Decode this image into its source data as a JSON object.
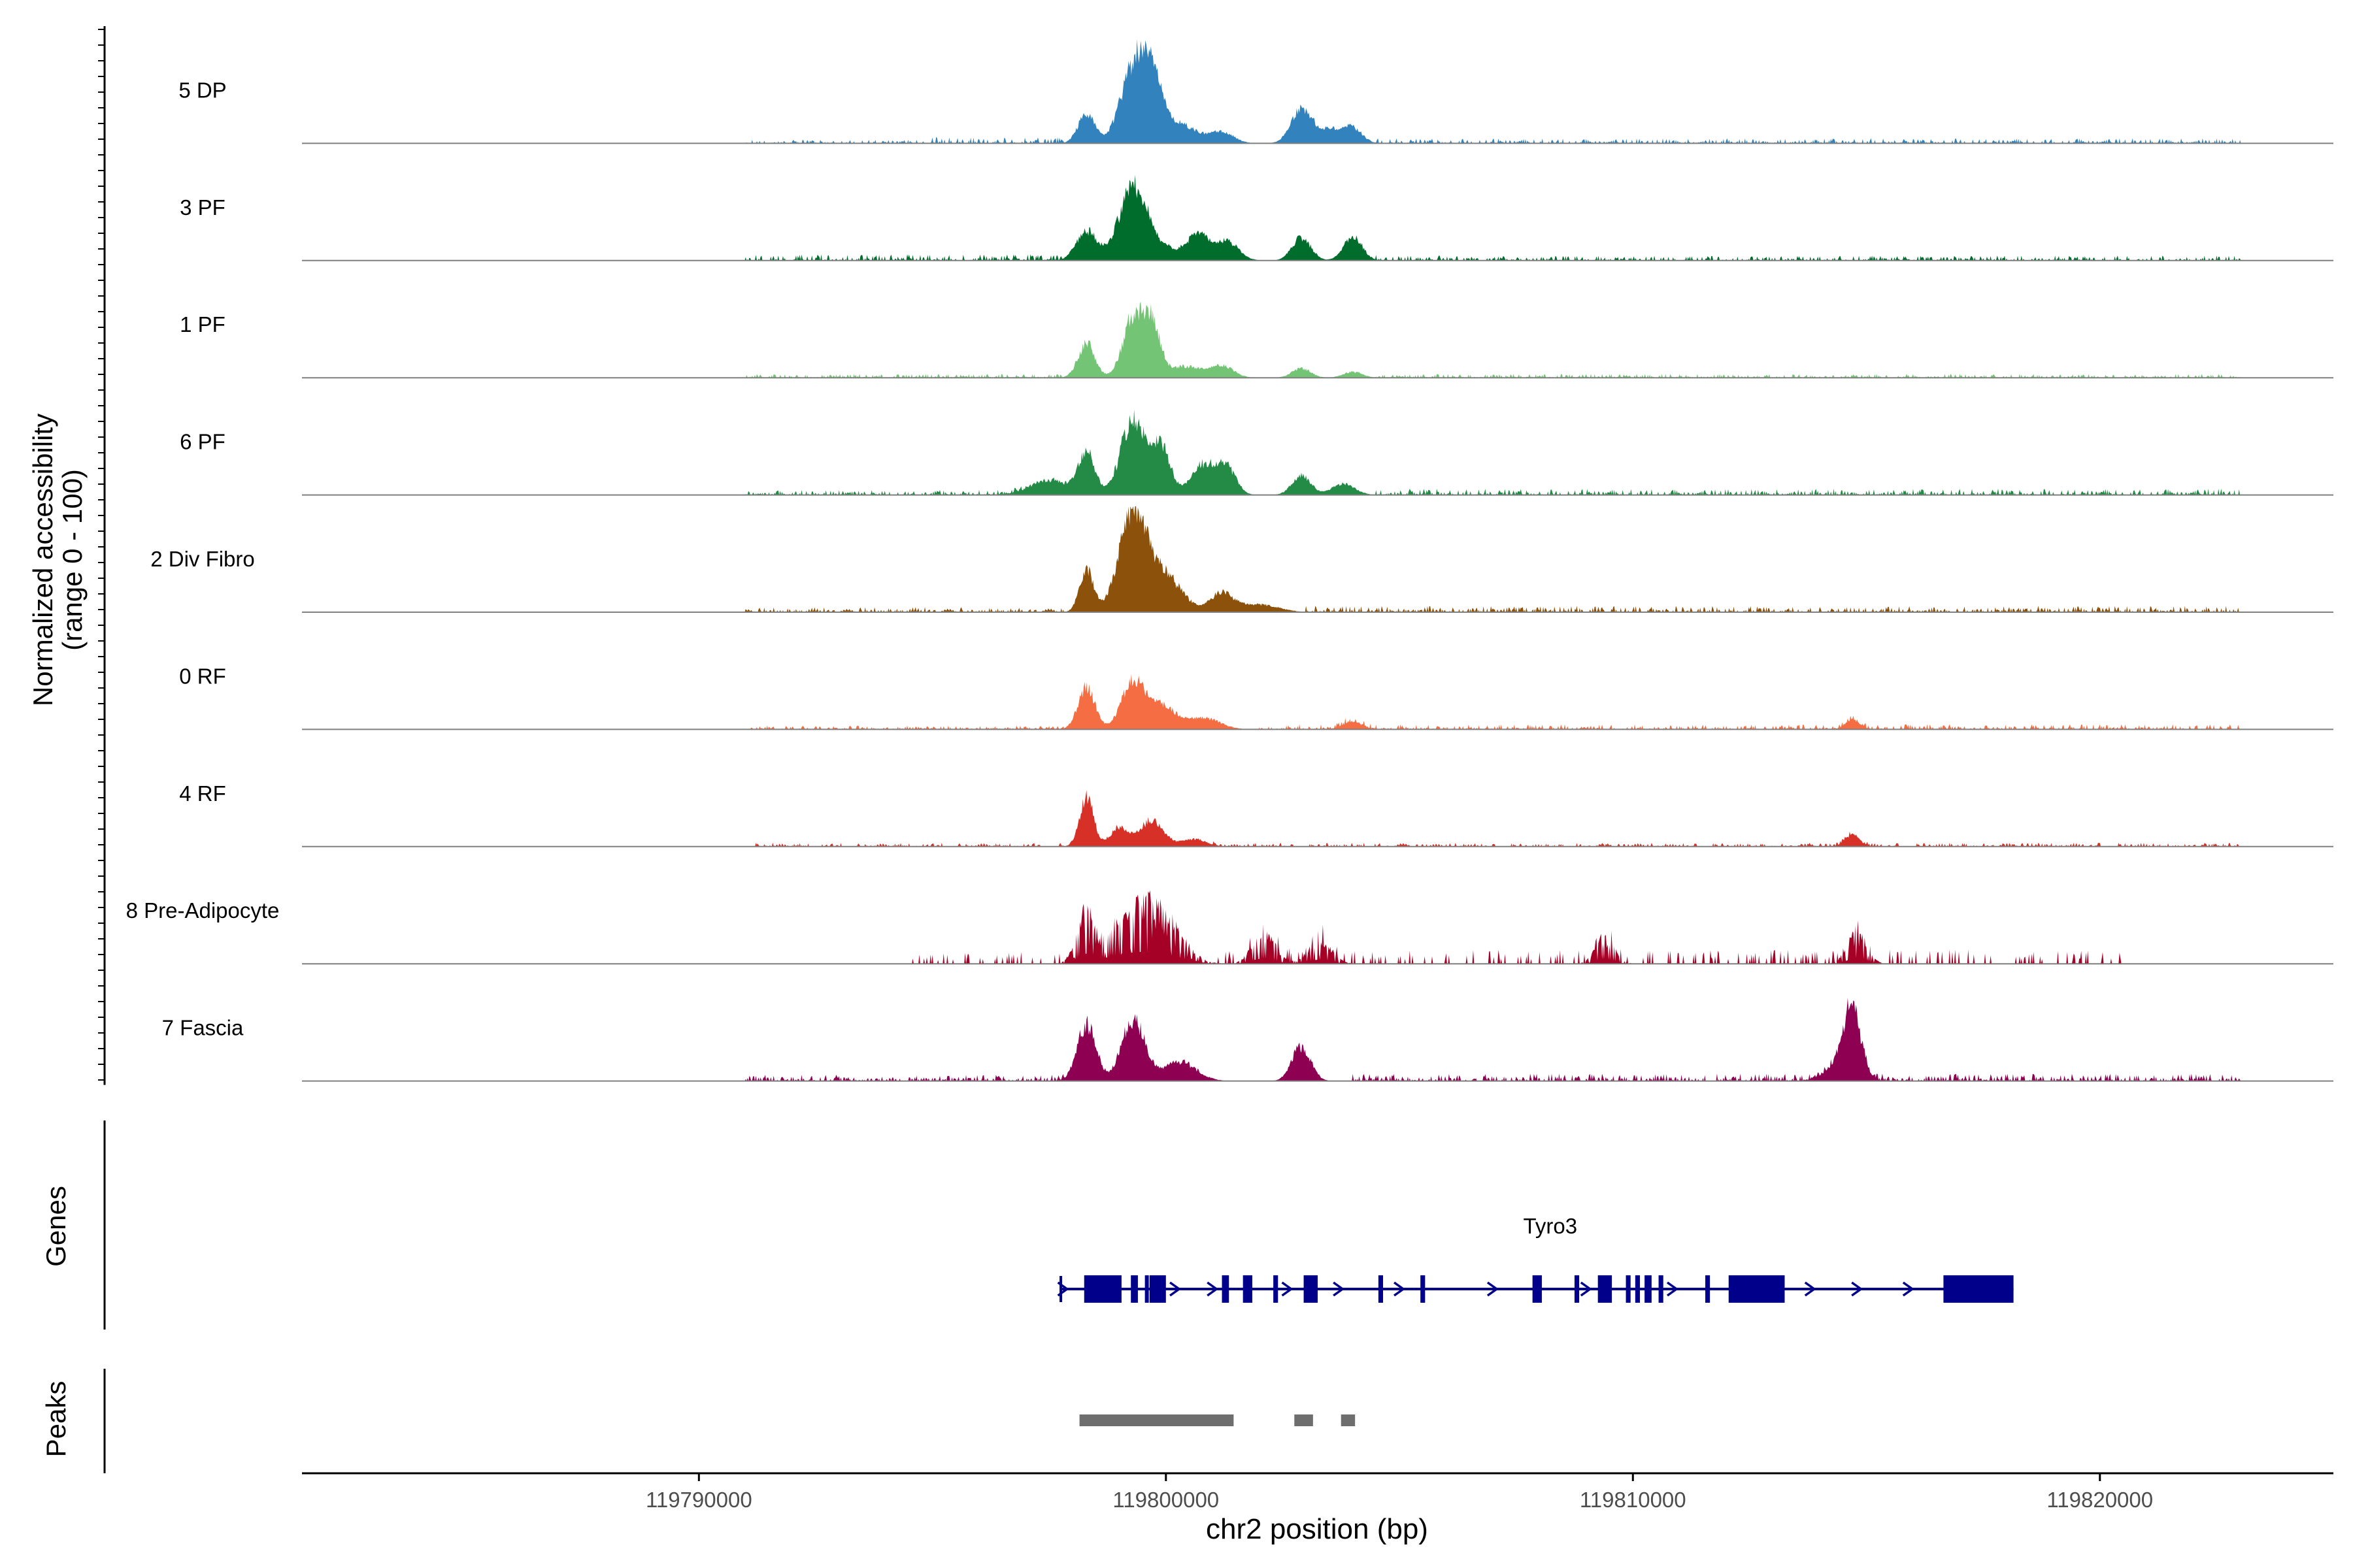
{
  "chart_data": {
    "type": "area",
    "title": "",
    "ylabel_line1": "Normalized accessibility",
    "ylabel_line2": "(range 0 - 100)",
    "xlabel": "chr2 position (bp)",
    "xlim": [
      119781500,
      119825000
    ],
    "ylim": [
      0,
      100
    ],
    "x_ticks": [
      119790000,
      119800000,
      119810000,
      119820000
    ],
    "x_tick_labels": [
      "119790000",
      "119800000",
      "119810000",
      "119820000"
    ],
    "tracks": [
      {
        "name": "5 DP",
        "color": "#3182bd",
        "peaks": [
          [
            119798300,
            38,
            180
          ],
          [
            119799300,
            95,
            280
          ],
          [
            119799700,
            75,
            220
          ],
          [
            119800300,
            25,
            350
          ],
          [
            119801200,
            15,
            250
          ],
          [
            119802900,
            45,
            220
          ],
          [
            119803500,
            18,
            250
          ],
          [
            119804000,
            20,
            200
          ]
        ],
        "bg": [
          [
            119791000,
            119795000,
            3
          ],
          [
            119795000,
            119797800,
            5
          ],
          [
            119804500,
            119823000,
            4
          ]
        ]
      },
      {
        "name": "3 PF",
        "color": "#006d2c",
        "peaks": [
          [
            119798300,
            38,
            220
          ],
          [
            119799300,
            90,
            300
          ],
          [
            119800700,
            28,
            200
          ],
          [
            119801300,
            25,
            250
          ],
          [
            119802900,
            30,
            200
          ],
          [
            119804000,
            32,
            200
          ],
          [
            119800000,
            15,
            600
          ]
        ],
        "bg": [
          [
            119791000,
            119797800,
            5
          ],
          [
            119804500,
            119823000,
            4
          ]
        ]
      },
      {
        "name": "1 PF",
        "color": "#74c476",
        "peaks": [
          [
            119798300,
            45,
            180
          ],
          [
            119799300,
            78,
            220
          ],
          [
            119799700,
            65,
            180
          ],
          [
            119800400,
            15,
            350
          ],
          [
            119801200,
            15,
            250
          ],
          [
            119802900,
            12,
            200
          ],
          [
            119804000,
            8,
            200
          ]
        ],
        "bg": [
          [
            119791000,
            119797800,
            3
          ],
          [
            119804500,
            119823000,
            3
          ]
        ]
      },
      {
        "name": "6 PF",
        "color": "#238b45",
        "peaks": [
          [
            119798300,
            55,
            180
          ],
          [
            119799300,
            100,
            260
          ],
          [
            119799900,
            60,
            200
          ],
          [
            119800800,
            40,
            250
          ],
          [
            119801300,
            35,
            200
          ],
          [
            119802900,
            25,
            200
          ],
          [
            119797500,
            20,
            400
          ],
          [
            119803800,
            15,
            250
          ]
        ],
        "bg": [
          [
            119791000,
            119797000,
            4
          ],
          [
            119804500,
            119823000,
            5
          ]
        ]
      },
      {
        "name": "2 Div Fibro",
        "color": "#8c510a",
        "peaks": [
          [
            119798300,
            55,
            150
          ],
          [
            119799300,
            130,
            300
          ],
          [
            119800000,
            45,
            350
          ],
          [
            119801200,
            25,
            250
          ],
          [
            119802000,
            10,
            400
          ]
        ],
        "bg": [
          [
            119791000,
            119797800,
            4
          ],
          [
            119803000,
            119823000,
            5
          ]
        ]
      },
      {
        "name": "0 RF",
        "color": "#f46d43",
        "peaks": [
          [
            119798300,
            55,
            180
          ],
          [
            119799300,
            60,
            250
          ],
          [
            119799900,
            30,
            300
          ],
          [
            119800800,
            15,
            350
          ],
          [
            119804000,
            10,
            200
          ],
          [
            119814700,
            12,
            150
          ]
        ],
        "bg": [
          [
            119791000,
            119797800,
            3
          ],
          [
            119802000,
            119823000,
            4
          ]
        ]
      },
      {
        "name": "4 RF",
        "color": "#d73027",
        "peaks": [
          [
            119798300,
            65,
            150
          ],
          [
            119799000,
            25,
            200
          ],
          [
            119799700,
            35,
            250
          ],
          [
            119800600,
            10,
            250
          ],
          [
            119814700,
            15,
            150
          ]
        ],
        "bg": [
          [
            119791000,
            119797800,
            3
          ],
          [
            119801000,
            119823000,
            3
          ]
        ]
      },
      {
        "name": "8 Pre-Adipocyte",
        "color": "#a50026",
        "peaks": [
          [
            119798300,
            75,
            200
          ],
          [
            119799300,
            85,
            500
          ],
          [
            119800000,
            50,
            400
          ],
          [
            119802100,
            45,
            250
          ],
          [
            119803300,
            35,
            250
          ],
          [
            119814800,
            50,
            200
          ],
          [
            119809400,
            40,
            200
          ]
        ],
        "bg": [
          [
            119794500,
            119797800,
            10
          ],
          [
            119801000,
            119820500,
            12
          ]
        ],
        "sparse": true
      },
      {
        "name": "7 Fascia",
        "color": "#8e0152",
        "peaks": [
          [
            119798300,
            75,
            200
          ],
          [
            119799300,
            80,
            250
          ],
          [
            119800300,
            25,
            350
          ],
          [
            119802900,
            45,
            200
          ],
          [
            119814700,
            85,
            180
          ],
          [
            119814400,
            20,
            300
          ]
        ],
        "bg": [
          [
            119791000,
            119797800,
            5
          ],
          [
            119804000,
            119823000,
            6
          ]
        ]
      }
    ],
    "genes_label": "Genes",
    "gene": {
      "name": "Tyro3",
      "color": "#00008b",
      "start": 119797750,
      "end": 119818150,
      "exons": [
        [
          119798250,
          119799050
        ],
        [
          119799250,
          119799400
        ],
        [
          119799550,
          119799600
        ],
        [
          119799650,
          119800000
        ],
        [
          119801200,
          119801350
        ],
        [
          119801650,
          119801850
        ],
        [
          119802300,
          119802400
        ],
        [
          119802950,
          119803250
        ],
        [
          119804550,
          119804650
        ],
        [
          119805450,
          119805550
        ],
        [
          119807850,
          119808050
        ],
        [
          119808750,
          119808850
        ],
        [
          119809250,
          119809550
        ],
        [
          119809850,
          119809950
        ],
        [
          119810050,
          119810150
        ],
        [
          119810250,
          119810400
        ],
        [
          119810550,
          119810650
        ],
        [
          119811550,
          119811650
        ],
        [
          119812050,
          119813250
        ],
        [
          119816650,
          119818150
        ]
      ],
      "arrows": [
        119797800,
        119800200,
        119801000,
        119802600,
        119803700,
        119805000,
        119807000,
        119809000,
        119810850,
        119813800,
        119814800,
        119815900
      ]
    },
    "peaks_label": "Peaks",
    "peak_regions": [
      [
        119798150,
        119801450
      ],
      [
        119802750,
        119803150
      ],
      [
        119803750,
        119804050
      ]
    ]
  }
}
